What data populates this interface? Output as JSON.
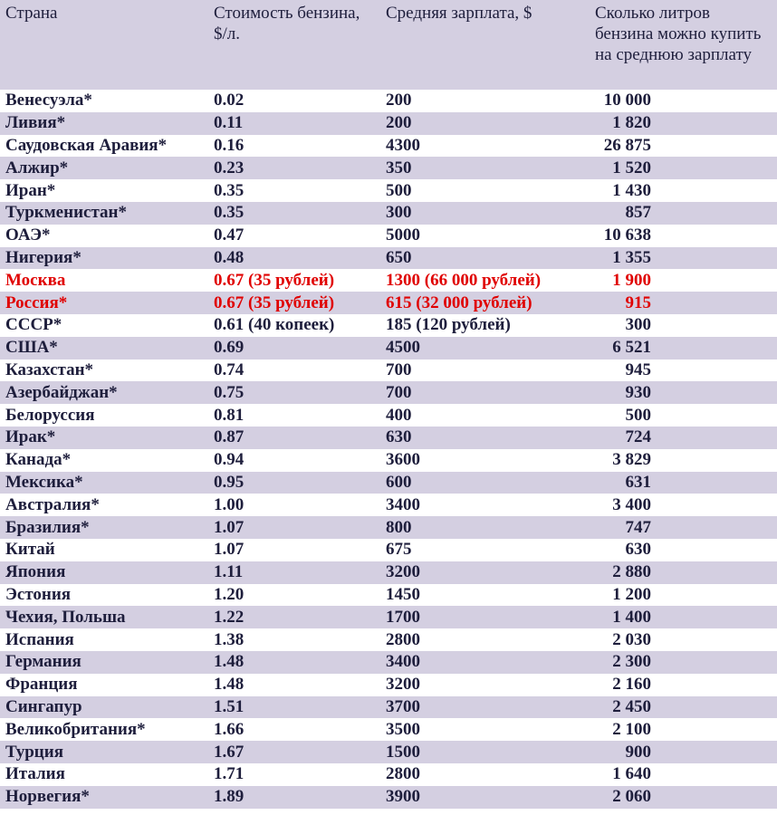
{
  "headers": {
    "country": "Страна",
    "price": "Стоимость бензина, $/л.",
    "salary": "Средняя зарплата, $",
    "liters": "Сколько литров бензина можно купить на среднюю зарплату"
  },
  "colors": {
    "row_shade": "#d4cfe1",
    "highlight": "#e00000",
    "text": "#1e1e3c"
  },
  "rows": [
    {
      "country": "Венесуэла*",
      "price": "0.02",
      "salary": "200",
      "liters": "10 000"
    },
    {
      "country": "Ливия*",
      "price": "0.11",
      "salary": "200",
      "liters": "1 820"
    },
    {
      "country": "Саудовская Аравия*",
      "price": "0.16",
      "salary": "4300",
      "liters": "26 875"
    },
    {
      "country": "Алжир*",
      "price": "0.23",
      "salary": "350",
      "liters": "1 520"
    },
    {
      "country": "Иран*",
      "price": "0.35",
      "salary": "500",
      "liters": "1 430"
    },
    {
      "country": "Туркменистан*",
      "price": "0.35",
      "salary": "300",
      "liters": "857"
    },
    {
      "country": "ОАЭ*",
      "price": "0.47",
      "salary": "5000",
      "liters": "10 638"
    },
    {
      "country": "Нигерия*",
      "price": "0.48",
      "salary": "650",
      "liters": "1 355"
    },
    {
      "country": "Москва",
      "price": "0.67 (35 рублей)",
      "salary": "1300 (66 000 рублей)",
      "liters": "1 900"
    },
    {
      "country": "Россия*",
      "price": "0.67 (35 рублей)",
      "salary": "615 (32 000 рублей)",
      "liters": "915"
    },
    {
      "country": "СССР*",
      "price": "0.61 (40 копеек)",
      "salary": "185 (120 рублей)",
      "liters": "300"
    },
    {
      "country": "США*",
      "price": "0.69",
      "salary": "4500",
      "liters": "6  521"
    },
    {
      "country": "Казахстан*",
      "price": "0.74",
      "salary": "700",
      "liters": "945"
    },
    {
      "country": "Азербайджан*",
      "price": "0.75",
      "salary": "700",
      "liters": "930"
    },
    {
      "country": "Белоруссия",
      "price": "0.81",
      "salary": "400",
      "liters": "500"
    },
    {
      "country": "Ирак*",
      "price": "0.87",
      "salary": "630",
      "liters": "724"
    },
    {
      "country": "Канада*",
      "price": "0.94",
      "salary": "3600",
      "liters": "3 829"
    },
    {
      "country": "Мексика*",
      "price": "0.95",
      "salary": "600",
      "liters": "631"
    },
    {
      "country": "Австралия*",
      "price": "1.00",
      "salary": "3400",
      "liters": "3 400"
    },
    {
      "country": "Бразилия*",
      "price": "1.07",
      "salary": "800",
      "liters": "747"
    },
    {
      "country": "Китай",
      "price": "1.07",
      "salary": "675",
      "liters": "630"
    },
    {
      "country": "Япония",
      "price": "1.11",
      "salary": "3200",
      "liters": "2 880"
    },
    {
      "country": "Эстония",
      "price": "1.20",
      "salary": "1450",
      "liters": "1 200"
    },
    {
      "country": "Чехия, Польша",
      "price": "1.22",
      "salary": "1700",
      "liters": "1 400"
    },
    {
      "country": "Испания",
      "price": "1.38",
      "salary": "2800",
      "liters": "2 030"
    },
    {
      "country": "Германия",
      "price": "1.48",
      "salary": "3400",
      "liters": "2 300"
    },
    {
      "country": "Франция",
      "price": "1.48",
      "salary": "3200",
      "liters": "2 160"
    },
    {
      "country": "Сингапур",
      "price": "1.51",
      "salary": "3700",
      "liters": "2 450"
    },
    {
      "country": "Великобритания*",
      "price": "1.66",
      "salary": "3500",
      "liters": "2 100"
    },
    {
      "country": "Турция",
      "price": "1.67",
      "salary": "1500",
      "liters": "900"
    },
    {
      "country": "Италия",
      "price": "1.71",
      "salary": "2800",
      "liters": "1 640"
    },
    {
      "country": "Норвегия*",
      "price": "1.89",
      "salary": "3900",
      "liters": "2 060"
    }
  ],
  "highlighted_rows": [
    8,
    9
  ]
}
